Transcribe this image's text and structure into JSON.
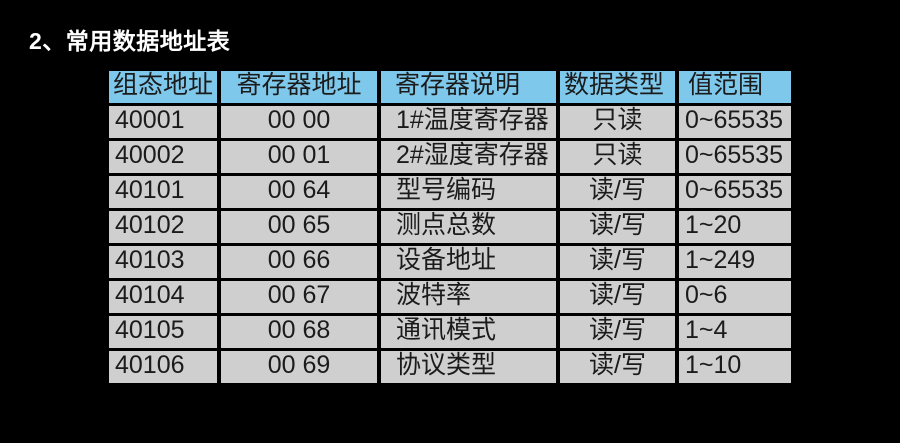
{
  "page": {
    "title": "2、常用数据地址表"
  },
  "colors": {
    "background": "#000000",
    "header_bg": "#7EC8EC",
    "row_bg": "#CFCFCF",
    "cell_text": "#1B1B1B",
    "title_text": "#FFFFFF"
  },
  "table": {
    "headers": [
      "组态地址",
      "寄存器地址",
      "寄存器说明",
      "数据类型",
      "值范围"
    ],
    "rows": [
      [
        "40001",
        "00 00",
        "1#温度寄存器",
        "只读",
        "0~65535"
      ],
      [
        "40002",
        "00 01",
        "2#湿度寄存器",
        "只读",
        "0~65535"
      ],
      [
        "40101",
        "00 64",
        "型号编码",
        "读/写",
        "0~65535"
      ],
      [
        "40102",
        "00 65",
        "测点总数",
        "读/写",
        "1~20"
      ],
      [
        "40103",
        "00 66",
        "设备地址",
        "读/写",
        "1~249"
      ],
      [
        "40104",
        "00 67",
        "波特率",
        "读/写",
        "0~6"
      ],
      [
        "40105",
        "00 68",
        "通讯模式",
        "读/写",
        "1~4"
      ],
      [
        "40106",
        "00 69",
        "协议类型",
        "读/写",
        "1~10"
      ]
    ]
  }
}
